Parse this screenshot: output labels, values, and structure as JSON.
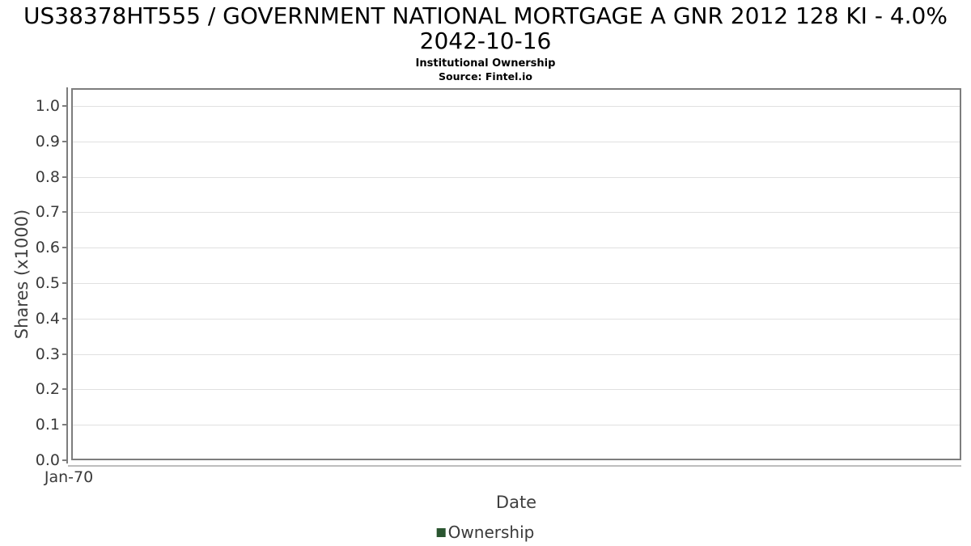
{
  "header": {
    "title_line1": "US38378HT555 / GOVERNMENT NATIONAL MORTGAGE A GNR 2012 128 KI - 4.0%",
    "title_line2": "2042-10-16",
    "subtitle": "Institutional Ownership",
    "source": "Source: Fintel.io"
  },
  "chart_data": {
    "type": "line",
    "title": "US38378HT555 / GOVERNMENT NATIONAL MORTGAGE A GNR 2012 128 KI - 4.0% 2042-10-16",
    "subtitle": "Institutional Ownership",
    "source": "Source: Fintel.io",
    "xlabel": "Date",
    "ylabel": "Shares (x1000)",
    "xticks": [
      "Jan-70"
    ],
    "ytick_labels": [
      "0.0",
      "0.1",
      "0.2",
      "0.3",
      "0.4",
      "0.5",
      "0.6",
      "0.7",
      "0.8",
      "0.9",
      "1.0"
    ],
    "ylim": [
      0.0,
      1.05
    ],
    "grid": "horizontal-only",
    "legend_position": "bottom-center",
    "series": [
      {
        "name": "Ownership",
        "color": "#2a5530",
        "x": [],
        "values": []
      }
    ],
    "colors": {
      "title_text": "#000000",
      "tick_text": "#3a3a3a",
      "axis_title_text": "#3f3f3f",
      "plot_border": "#7d7d7d",
      "gridline": "#e0e0e0",
      "x_axis_line": "#bdbdbd",
      "legend_marker": "#2a5530"
    }
  },
  "legend": {
    "items": [
      {
        "label": "Ownership",
        "color": "#2a5530"
      }
    ]
  }
}
